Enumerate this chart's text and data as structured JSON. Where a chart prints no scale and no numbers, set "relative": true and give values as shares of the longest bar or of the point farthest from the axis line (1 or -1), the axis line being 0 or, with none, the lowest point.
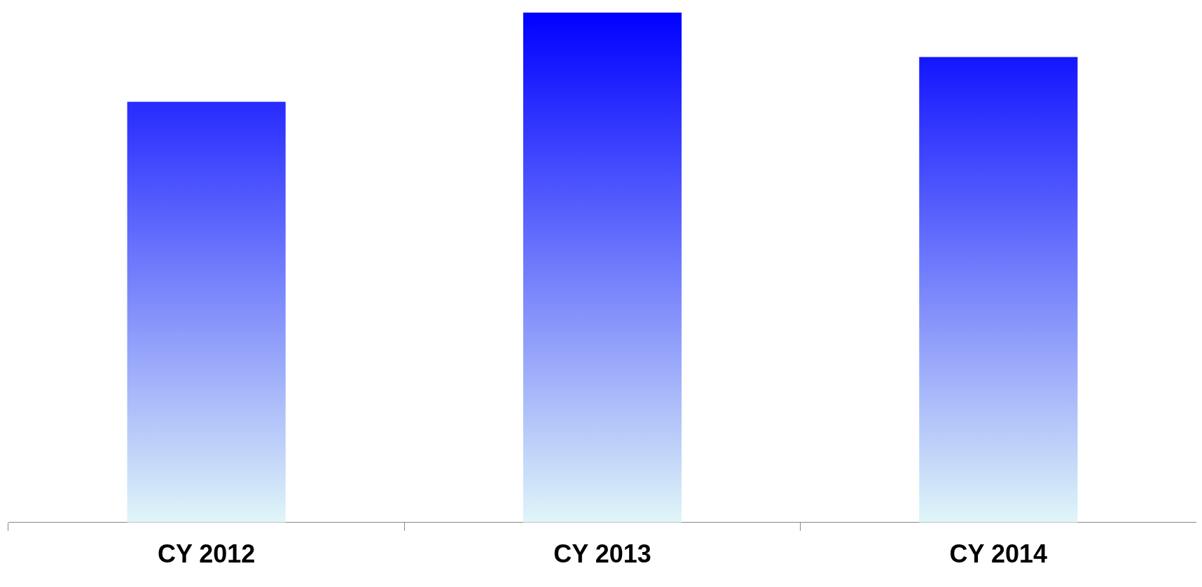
{
  "chart_data": {
    "type": "bar",
    "relative": true,
    "categories": [
      "CY 2012",
      "CY 2013",
      "CY 2014"
    ],
    "values": [
      0.825,
      1,
      0.913
    ],
    "color": "#0000ff"
  }
}
